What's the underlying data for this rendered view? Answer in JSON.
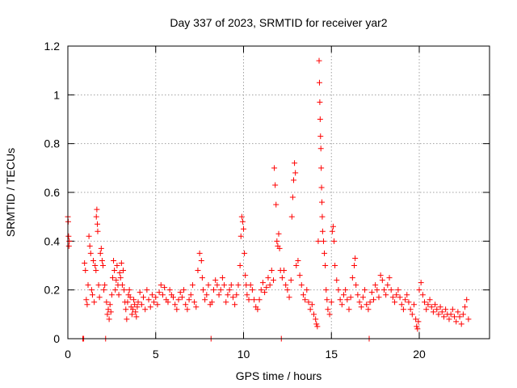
{
  "chart_data": {
    "type": "scatter",
    "title": "Day 337 of 2023, SRMTID for receiver yar2",
    "xlabel": "GPS time / hours",
    "ylabel": "SRMTID / TECUs",
    "xlim": [
      0,
      24
    ],
    "ylim": [
      0,
      1.2
    ],
    "xticks": [
      0,
      5,
      10,
      15,
      20
    ],
    "yticks": [
      0,
      0.2,
      0.4,
      0.6,
      0.8,
      1,
      1.2
    ],
    "xtick_labels": [
      "0",
      "5",
      "10",
      "15",
      "20"
    ],
    "ytick_labels": [
      "0",
      "0.2",
      "0.4",
      "0.6",
      "0.8",
      "1",
      "1.2"
    ],
    "grid": true,
    "marker": "+",
    "color": "#ff0000",
    "series": [
      {
        "name": "SRMTID",
        "points": [
          [
            0.0,
            0.5
          ],
          [
            0.02,
            0.48
          ],
          [
            0.04,
            0.42
          ],
          [
            0.06,
            0.38
          ],
          [
            0.08,
            0.4
          ],
          [
            0.85,
            0.0
          ],
          [
            0.9,
            0.0
          ],
          [
            0.95,
            0.31
          ],
          [
            1.0,
            0.28
          ],
          [
            1.05,
            0.16
          ],
          [
            1.1,
            0.14
          ],
          [
            1.15,
            0.22
          ],
          [
            1.2,
            0.42
          ],
          [
            1.25,
            0.38
          ],
          [
            1.3,
            0.35
          ],
          [
            1.35,
            0.2
          ],
          [
            1.4,
            0.18
          ],
          [
            1.45,
            0.32
          ],
          [
            1.5,
            0.15
          ],
          [
            1.55,
            0.3
          ],
          [
            1.6,
            0.28
          ],
          [
            1.62,
            0.5
          ],
          [
            1.65,
            0.53
          ],
          [
            1.68,
            0.47
          ],
          [
            1.7,
            0.44
          ],
          [
            1.75,
            0.22
          ],
          [
            1.8,
            0.17
          ],
          [
            1.85,
            0.35
          ],
          [
            1.9,
            0.37
          ],
          [
            1.95,
            0.32
          ],
          [
            2.0,
            0.3
          ],
          [
            2.05,
            0.2
          ],
          [
            2.1,
            0.22
          ],
          [
            2.15,
            0.0
          ],
          [
            2.2,
            0.15
          ],
          [
            2.25,
            0.1
          ],
          [
            2.3,
            0.12
          ],
          [
            2.35,
            0.08
          ],
          [
            2.4,
            0.14
          ],
          [
            2.45,
            0.11
          ],
          [
            2.5,
            0.18
          ],
          [
            2.55,
            0.25
          ],
          [
            2.6,
            0.32
          ],
          [
            2.65,
            0.28
          ],
          [
            2.7,
            0.2
          ],
          [
            2.75,
            0.24
          ],
          [
            2.8,
            0.3
          ],
          [
            2.85,
            0.22
          ],
          [
            2.9,
            0.18
          ],
          [
            2.95,
            0.27
          ],
          [
            3.0,
            0.25
          ],
          [
            3.05,
            0.31
          ],
          [
            3.1,
            0.22
          ],
          [
            3.15,
            0.28
          ],
          [
            3.2,
            0.2
          ],
          [
            3.25,
            0.15
          ],
          [
            3.3,
            0.12
          ],
          [
            3.35,
            0.08
          ],
          [
            3.4,
            0.15
          ],
          [
            3.45,
            0.18
          ],
          [
            3.5,
            0.2
          ],
          [
            3.55,
            0.17
          ],
          [
            3.6,
            0.13
          ],
          [
            3.65,
            0.1
          ],
          [
            3.7,
            0.12
          ],
          [
            3.75,
            0.16
          ],
          [
            3.8,
            0.14
          ],
          [
            3.85,
            0.11
          ],
          [
            3.9,
            0.09
          ],
          [
            3.95,
            0.13
          ],
          [
            4.0,
            0.15
          ],
          [
            4.1,
            0.19
          ],
          [
            4.2,
            0.14
          ],
          [
            4.3,
            0.17
          ],
          [
            4.4,
            0.12
          ],
          [
            4.5,
            0.2
          ],
          [
            4.6,
            0.16
          ],
          [
            4.7,
            0.13
          ],
          [
            4.8,
            0.18
          ],
          [
            4.9,
            0.15
          ],
          [
            5.0,
            0.17
          ],
          [
            5.1,
            0.14
          ],
          [
            5.2,
            0.19
          ],
          [
            5.3,
            0.22
          ],
          [
            5.4,
            0.18
          ],
          [
            5.5,
            0.21
          ],
          [
            5.6,
            0.16
          ],
          [
            5.7,
            0.15
          ],
          [
            5.8,
            0.2
          ],
          [
            5.9,
            0.18
          ],
          [
            6.0,
            0.17
          ],
          [
            6.1,
            0.14
          ],
          [
            6.2,
            0.12
          ],
          [
            6.3,
            0.16
          ],
          [
            6.4,
            0.19
          ],
          [
            6.5,
            0.17
          ],
          [
            6.6,
            0.2
          ],
          [
            6.7,
            0.14
          ],
          [
            6.8,
            0.12
          ],
          [
            6.9,
            0.16
          ],
          [
            7.0,
            0.18
          ],
          [
            7.1,
            0.22
          ],
          [
            7.2,
            0.15
          ],
          [
            7.3,
            0.13
          ],
          [
            7.4,
            0.28
          ],
          [
            7.5,
            0.35
          ],
          [
            7.6,
            0.32
          ],
          [
            7.65,
            0.25
          ],
          [
            7.7,
            0.2
          ],
          [
            7.8,
            0.16
          ],
          [
            7.9,
            0.18
          ],
          [
            8.0,
            0.22
          ],
          [
            8.1,
            0.14
          ],
          [
            8.15,
            0.0
          ],
          [
            8.2,
            0.15
          ],
          [
            8.3,
            0.2
          ],
          [
            8.4,
            0.24
          ],
          [
            8.5,
            0.22
          ],
          [
            8.6,
            0.18
          ],
          [
            8.7,
            0.2
          ],
          [
            8.8,
            0.25
          ],
          [
            8.9,
            0.22
          ],
          [
            9.0,
            0.15
          ],
          [
            9.1,
            0.18
          ],
          [
            9.2,
            0.2
          ],
          [
            9.3,
            0.22
          ],
          [
            9.4,
            0.17
          ],
          [
            9.5,
            0.14
          ],
          [
            9.6,
            0.18
          ],
          [
            9.7,
            0.22
          ],
          [
            9.8,
            0.3
          ],
          [
            9.85,
            0.42
          ],
          [
            9.9,
            0.5
          ],
          [
            9.95,
            0.48
          ],
          [
            10.0,
            0.45
          ],
          [
            10.05,
            0.35
          ],
          [
            10.1,
            0.26
          ],
          [
            10.15,
            0.22
          ],
          [
            10.2,
            0.18
          ],
          [
            10.3,
            0.16
          ],
          [
            10.4,
            0.22
          ],
          [
            10.5,
            0.2
          ],
          [
            10.6,
            0.16
          ],
          [
            10.7,
            0.13
          ],
          [
            10.8,
            0.12
          ],
          [
            10.9,
            0.16
          ],
          [
            11.0,
            0.2
          ],
          [
            11.1,
            0.23
          ],
          [
            11.2,
            0.19
          ],
          [
            11.3,
            0.21
          ],
          [
            11.4,
            0.25
          ],
          [
            11.5,
            0.22
          ],
          [
            11.6,
            0.28
          ],
          [
            11.7,
            0.24
          ],
          [
            11.75,
            0.7
          ],
          [
            11.8,
            0.63
          ],
          [
            11.85,
            0.55
          ],
          [
            11.9,
            0.4
          ],
          [
            11.95,
            0.38
          ],
          [
            12.0,
            0.43
          ],
          [
            12.05,
            0.37
          ],
          [
            12.1,
            0.28
          ],
          [
            12.15,
            0.0
          ],
          [
            12.2,
            0.25
          ],
          [
            12.3,
            0.28
          ],
          [
            12.4,
            0.22
          ],
          [
            12.5,
            0.2
          ],
          [
            12.6,
            0.17
          ],
          [
            12.7,
            0.24
          ],
          [
            12.75,
            0.5
          ],
          [
            12.8,
            0.58
          ],
          [
            12.85,
            0.65
          ],
          [
            12.9,
            0.72
          ],
          [
            12.95,
            0.68
          ],
          [
            13.0,
            0.3
          ],
          [
            13.1,
            0.32
          ],
          [
            13.2,
            0.26
          ],
          [
            13.3,
            0.22
          ],
          [
            13.4,
            0.18
          ],
          [
            13.5,
            0.16
          ],
          [
            13.6,
            0.2
          ],
          [
            13.7,
            0.15
          ],
          [
            13.8,
            0.12
          ],
          [
            13.9,
            0.14
          ],
          [
            14.0,
            0.1
          ],
          [
            14.1,
            0.08
          ],
          [
            14.15,
            0.06
          ],
          [
            14.2,
            0.05
          ],
          [
            14.25,
            0.4
          ],
          [
            14.3,
            1.14
          ],
          [
            14.32,
            1.05
          ],
          [
            14.34,
            0.97
          ],
          [
            14.36,
            0.9
          ],
          [
            14.38,
            0.83
          ],
          [
            14.4,
            0.78
          ],
          [
            14.42,
            0.7
          ],
          [
            14.44,
            0.62
          ],
          [
            14.46,
            0.56
          ],
          [
            14.48,
            0.5
          ],
          [
            14.5,
            0.44
          ],
          [
            14.55,
            0.4
          ],
          [
            14.6,
            0.35
          ],
          [
            14.65,
            0.3
          ],
          [
            14.7,
            0.2
          ],
          [
            14.75,
            0.16
          ],
          [
            14.8,
            0.12
          ],
          [
            14.9,
            0.1
          ],
          [
            15.0,
            0.15
          ],
          [
            15.05,
            0.44
          ],
          [
            15.1,
            0.46
          ],
          [
            15.15,
            0.4
          ],
          [
            15.2,
            0.3
          ],
          [
            15.3,
            0.24
          ],
          [
            15.4,
            0.2
          ],
          [
            15.5,
            0.16
          ],
          [
            15.6,
            0.14
          ],
          [
            15.7,
            0.18
          ],
          [
            15.8,
            0.2
          ],
          [
            15.9,
            0.16
          ],
          [
            16.0,
            0.12
          ],
          [
            16.1,
            0.17
          ],
          [
            16.2,
            0.25
          ],
          [
            16.3,
            0.3
          ],
          [
            16.35,
            0.33
          ],
          [
            16.4,
            0.22
          ],
          [
            16.5,
            0.18
          ],
          [
            16.6,
            0.15
          ],
          [
            16.7,
            0.13
          ],
          [
            16.8,
            0.17
          ],
          [
            16.9,
            0.2
          ],
          [
            17.0,
            0.14
          ],
          [
            17.1,
            0.12
          ],
          [
            17.15,
            0.0
          ],
          [
            17.2,
            0.15
          ],
          [
            17.3,
            0.19
          ],
          [
            17.4,
            0.16
          ],
          [
            17.5,
            0.22
          ],
          [
            17.6,
            0.2
          ],
          [
            17.7,
            0.17
          ],
          [
            17.8,
            0.26
          ],
          [
            17.9,
            0.24
          ],
          [
            18.0,
            0.2
          ],
          [
            18.1,
            0.18
          ],
          [
            18.2,
            0.22
          ],
          [
            18.3,
            0.25
          ],
          [
            18.4,
            0.2
          ],
          [
            18.5,
            0.17
          ],
          [
            18.6,
            0.15
          ],
          [
            18.7,
            0.18
          ],
          [
            18.8,
            0.2
          ],
          [
            18.9,
            0.17
          ],
          [
            19.0,
            0.14
          ],
          [
            19.1,
            0.12
          ],
          [
            19.2,
            0.16
          ],
          [
            19.3,
            0.18
          ],
          [
            19.4,
            0.15
          ],
          [
            19.5,
            0.12
          ],
          [
            19.6,
            0.1
          ],
          [
            19.7,
            0.14
          ],
          [
            19.8,
            0.08
          ],
          [
            19.85,
            0.05
          ],
          [
            19.9,
            0.04
          ],
          [
            19.95,
            0.07
          ],
          [
            20.0,
            0.2
          ],
          [
            20.1,
            0.23
          ],
          [
            20.2,
            0.18
          ],
          [
            20.3,
            0.15
          ],
          [
            20.4,
            0.12
          ],
          [
            20.5,
            0.14
          ],
          [
            20.6,
            0.16
          ],
          [
            20.7,
            0.13
          ],
          [
            20.8,
            0.11
          ],
          [
            20.9,
            0.14
          ],
          [
            21.0,
            0.12
          ],
          [
            21.1,
            0.1
          ],
          [
            21.2,
            0.13
          ],
          [
            21.3,
            0.11
          ],
          [
            21.4,
            0.09
          ],
          [
            21.5,
            0.12
          ],
          [
            21.6,
            0.1
          ],
          [
            21.7,
            0.08
          ],
          [
            21.8,
            0.1
          ],
          [
            21.9,
            0.12
          ],
          [
            22.0,
            0.09
          ],
          [
            22.1,
            0.07
          ],
          [
            22.2,
            0.11
          ],
          [
            22.3,
            0.09
          ],
          [
            22.4,
            0.06
          ],
          [
            22.5,
            0.1
          ],
          [
            22.6,
            0.13
          ],
          [
            22.7,
            0.16
          ],
          [
            22.8,
            0.08
          ]
        ]
      }
    ]
  }
}
